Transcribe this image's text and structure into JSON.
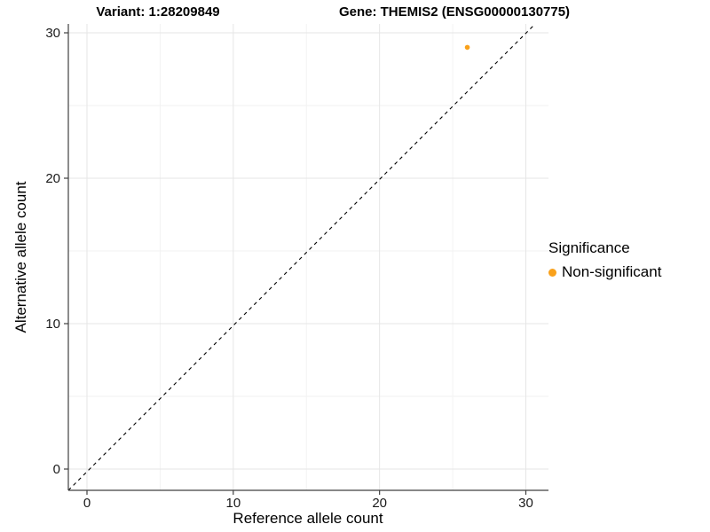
{
  "title": {
    "variant": "Variant: 1:28209849",
    "gene": "Gene: THEMIS2 (ENSG00000130775)"
  },
  "chart_data": {
    "type": "scatter",
    "title": "Variant: 1:28209849   Gene: THEMIS2 (ENSG00000130775)",
    "xlabel": "Reference allele count",
    "ylabel": "Alternative allele count",
    "xlim": [
      -1.5,
      31.5
    ],
    "ylim": [
      -1.5,
      31.5
    ],
    "x_ticks": [
      0,
      10,
      20,
      30
    ],
    "y_ticks": [
      0,
      10,
      20,
      30
    ],
    "x_minor_gridlines": [
      5,
      15,
      25
    ],
    "y_minor_gridlines": [
      5,
      15,
      25
    ],
    "grid": true,
    "reference_line": {
      "type": "identity y=x",
      "style": "dashed",
      "color": "#000000"
    },
    "series": [
      {
        "name": "Non-significant",
        "color": "#F9A11B",
        "points": [
          {
            "x": 26,
            "y": 29
          }
        ]
      }
    ],
    "legend": {
      "title": "Significance",
      "position": "right",
      "entries": [
        {
          "label": "Non-significant",
          "color": "#F9A11B"
        }
      ]
    },
    "style": {
      "background": "#ffffff",
      "grid_major_color": "#E6E6E6",
      "grid_minor_color": "#F2F2F2",
      "axis_line_color": "#404040",
      "tick_color": "#404040",
      "tick_label_color": "#1a1a1a",
      "point_color": "#F9A11B"
    }
  }
}
